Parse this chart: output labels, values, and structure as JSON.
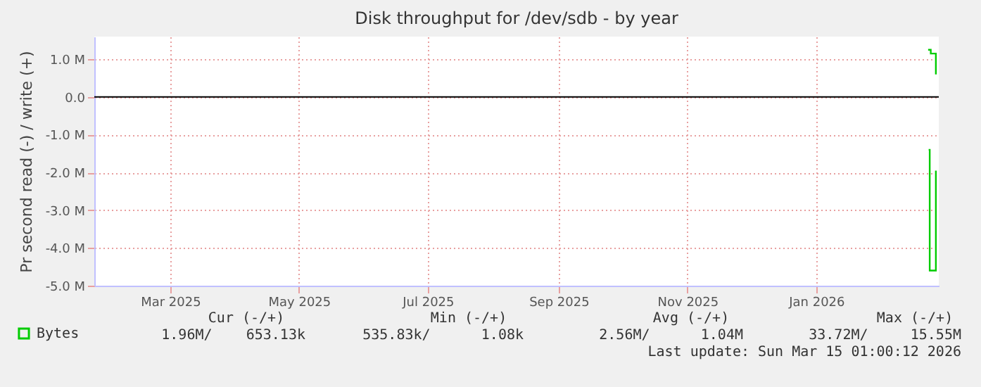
{
  "chart_data": {
    "type": "step",
    "title": "Disk throughput for /dev/sdb - by year",
    "ylabel": "Pr second read (-) / write (+)",
    "xlim": [
      "2025-02-08T01:00",
      "2026-03-15T01:00"
    ],
    "xticks": [
      {
        "value": "2025-03-16",
        "label": "Mar 2025"
      },
      {
        "value": "2025-05-16",
        "label": "May 2025"
      },
      {
        "value": "2025-07-16",
        "label": "Jul 2025"
      },
      {
        "value": "2025-09-16",
        "label": "Sep 2025"
      },
      {
        "value": "2025-11-16",
        "label": "Nov 2025"
      },
      {
        "value": "2026-01-16",
        "label": "Jan 2026"
      }
    ],
    "ylim": [
      -5000000,
      1600000
    ],
    "yticks": [
      {
        "value": -5000000,
        "label": "-5.0 M"
      },
      {
        "value": -4000000,
        "label": "-4.0 M"
      },
      {
        "value": -3000000,
        "label": "-3.0 M"
      },
      {
        "value": -2000000,
        "label": "-2.0 M"
      },
      {
        "value": -1000000,
        "label": "-1.0 M"
      },
      {
        "value": 0,
        "label": "0.0"
      },
      {
        "value": 1000000,
        "label": "1.0 M"
      }
    ],
    "series": [
      {
        "name": "Bytes",
        "color": "#00cc00",
        "x": [
          "2026-03-10T00:00",
          "2026-03-11T06:00",
          "2026-03-13T16:00"
        ],
        "values": [
          1250000,
          1150000,
          600000
        ]
      },
      {
        "color": "#00cc00",
        "x": [
          "2026-03-10T06:00",
          "2026-03-10T18:00",
          "2026-03-13T16:00"
        ],
        "values": [
          -1400000,
          -4600000,
          -1950000
        ]
      }
    ],
    "ref_lines": [
      {
        "axis": "y",
        "value": 0,
        "color": "#000000"
      }
    ],
    "grid": true,
    "legend": "bottom left",
    "annotations": [
      "Cur (-/+)",
      "Min (-/+)",
      "Avg (-/+)",
      "Max (-/+)",
      "1.96M/    653.13k",
      "535.83k/      1.08k",
      "2.56M/      1.04M",
      "33.72M/     15.55M",
      "Last update: Sun Mar 15 01:00:12 2026"
    ]
  }
}
